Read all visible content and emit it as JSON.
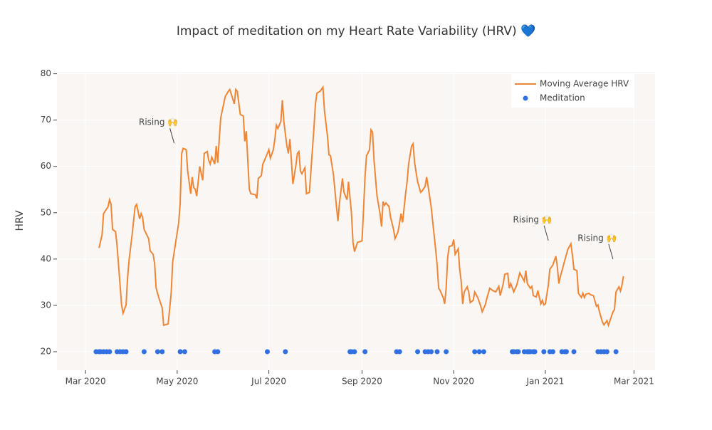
{
  "chart_data": {
    "type": "line",
    "title": "Impact of meditation on my Heart Rate Variability (HRV) 💙",
    "y_label": "HRV",
    "xlim": [
      "2020-02-11",
      "2021-03-15"
    ],
    "xticks": [
      {
        "value": "2020-03-01",
        "label": "Mar 2020"
      },
      {
        "value": "2020-05-01",
        "label": "May 2020"
      },
      {
        "value": "2020-07-01",
        "label": "Jul 2020"
      },
      {
        "value": "2020-09-01",
        "label": "Sep 2020"
      },
      {
        "value": "2020-11-01",
        "label": "Nov 2020"
      },
      {
        "value": "2021-01-01",
        "label": "Jan 2021"
      },
      {
        "value": "2021-03-01",
        "label": "Mar 2021"
      }
    ],
    "ylim": [
      16,
      80.4
    ],
    "yticks": [
      20,
      30,
      40,
      50,
      60,
      70,
      80
    ],
    "grid": true,
    "legend": "top-right",
    "annotations": [
      {
        "text": "Rising 🙌",
        "x": "2020-04-29",
        "y": 65
      },
      {
        "text": "Rising 🙌",
        "x": "2021-01-03",
        "y": 44
      },
      {
        "text": "Rising 🙌",
        "x": "2021-02-15",
        "y": 40
      }
    ],
    "series": [
      {
        "name": "Moving Average HRV",
        "color": "#ef8636",
        "mode": "lines",
        "x": [
          "2020-03-10",
          "2020-03-12",
          "2020-03-13",
          "2020-03-15",
          "2020-03-16",
          "2020-03-17",
          "2020-03-18",
          "2020-03-19",
          "2020-03-21",
          "2020-03-22",
          "2020-03-25",
          "2020-03-26",
          "2020-03-28",
          "2020-03-29",
          "2020-03-30",
          "2020-04-01",
          "2020-04-03",
          "2020-04-04",
          "2020-04-06",
          "2020-04-07",
          "2020-04-08",
          "2020-04-09",
          "2020-04-12",
          "2020-04-13",
          "2020-04-15",
          "2020-04-16",
          "2020-04-17",
          "2020-04-19",
          "2020-04-21",
          "2020-04-22",
          "2020-04-25",
          "2020-04-27",
          "2020-04-28",
          "2020-04-30",
          "2020-05-02",
          "2020-05-03",
          "2020-05-04",
          "2020-05-05",
          "2020-05-07",
          "2020-05-08",
          "2020-05-10",
          "2020-05-11",
          "2020-05-12",
          "2020-05-13",
          "2020-05-14",
          "2020-05-16",
          "2020-05-18",
          "2020-05-19",
          "2020-05-21",
          "2020-05-22",
          "2020-05-23",
          "2020-05-24",
          "2020-05-26",
          "2020-05-27",
          "2020-05-28",
          "2020-05-29",
          "2020-05-30",
          "2020-06-02",
          "2020-06-04",
          "2020-06-05",
          "2020-06-06",
          "2020-06-08",
          "2020-06-09",
          "2020-06-10",
          "2020-06-12",
          "2020-06-14",
          "2020-06-15",
          "2020-06-16",
          "2020-06-17",
          "2020-06-18",
          "2020-06-19",
          "2020-06-22",
          "2020-06-23",
          "2020-06-24",
          "2020-06-26",
          "2020-06-27",
          "2020-06-29",
          "2020-07-01",
          "2020-07-02",
          "2020-07-04",
          "2020-07-05",
          "2020-07-06",
          "2020-07-07",
          "2020-07-09",
          "2020-07-10",
          "2020-07-11",
          "2020-07-13",
          "2020-07-14",
          "2020-07-15",
          "2020-07-16",
          "2020-07-17",
          "2020-07-19",
          "2020-07-20",
          "2020-07-21",
          "2020-07-22",
          "2020-07-23",
          "2020-07-25",
          "2020-07-26",
          "2020-07-28",
          "2020-07-29",
          "2020-07-31",
          "2020-08-01",
          "2020-08-02",
          "2020-08-04",
          "2020-08-05",
          "2020-08-06",
          "2020-08-07",
          "2020-08-09",
          "2020-08-10",
          "2020-08-11",
          "2020-08-13",
          "2020-08-15",
          "2020-08-16",
          "2020-08-17",
          "2020-08-19",
          "2020-08-20",
          "2020-08-22",
          "2020-08-23",
          "2020-08-25",
          "2020-08-26",
          "2020-08-27",
          "2020-08-29",
          "2020-09-01",
          "2020-09-02",
          "2020-09-03",
          "2020-09-04",
          "2020-09-06",
          "2020-09-07",
          "2020-09-08",
          "2020-09-09",
          "2020-09-11",
          "2020-09-13",
          "2020-09-14",
          "2020-09-15",
          "2020-09-16",
          "2020-09-17",
          "2020-09-19",
          "2020-09-20",
          "2020-09-22",
          "2020-09-23",
          "2020-09-25",
          "2020-09-27",
          "2020-09-28",
          "2020-09-30",
          "2020-10-01",
          "2020-10-02",
          "2020-10-04",
          "2020-10-05",
          "2020-10-06",
          "2020-10-08",
          "2020-10-10",
          "2020-10-11",
          "2020-10-13",
          "2020-10-14",
          "2020-10-15",
          "2020-10-17",
          "2020-10-18",
          "2020-10-20",
          "2020-10-21",
          "2020-10-22",
          "2020-10-23",
          "2020-10-25",
          "2020-10-26",
          "2020-10-27",
          "2020-10-28",
          "2020-10-29",
          "2020-10-31",
          "2020-11-01",
          "2020-11-02",
          "2020-11-04",
          "2020-11-05",
          "2020-11-06",
          "2020-11-07",
          "2020-11-08",
          "2020-11-10",
          "2020-11-11",
          "2020-11-12",
          "2020-11-14",
          "2020-11-15",
          "2020-11-17",
          "2020-11-19",
          "2020-11-20",
          "2020-11-22",
          "2020-11-23",
          "2020-11-25",
          "2020-11-27",
          "2020-11-29",
          "2020-12-01",
          "2020-12-02",
          "2020-12-04",
          "2020-12-05",
          "2020-12-07",
          "2020-12-08",
          "2020-12-09",
          "2020-12-11",
          "2020-12-12",
          "2020-12-13",
          "2020-12-15",
          "2020-12-16",
          "2020-12-18",
          "2020-12-19",
          "2020-12-20",
          "2020-12-22",
          "2020-12-23",
          "2020-12-24",
          "2020-12-26",
          "2020-12-27",
          "2020-12-29",
          "2020-12-30",
          "2020-12-31",
          "2021-01-01",
          "2021-01-03",
          "2021-01-04",
          "2021-01-06",
          "2021-01-08",
          "2021-01-09",
          "2021-01-10",
          "2021-01-11",
          "2021-01-13",
          "2021-01-14",
          "2021-01-16",
          "2021-01-18",
          "2021-01-19",
          "2021-01-20",
          "2021-01-22",
          "2021-01-23",
          "2021-01-25",
          "2021-01-26",
          "2021-01-27",
          "2021-01-28",
          "2021-01-30",
          "2021-01-31",
          "2021-02-02",
          "2021-02-04",
          "2021-02-05",
          "2021-02-06",
          "2021-02-08",
          "2021-02-09",
          "2021-02-11",
          "2021-02-12",
          "2021-02-13",
          "2021-02-15",
          "2021-02-16",
          "2021-02-17",
          "2021-02-19",
          "2021-02-20",
          "2021-02-21",
          "2021-02-22"
        ],
        "values": [
          42.4,
          45.2,
          49.8,
          50.8,
          51.3,
          52.8,
          51.8,
          46.4,
          45.9,
          42.9,
          30.1,
          28.3,
          30.1,
          36,
          39.8,
          45.2,
          51.3,
          51.8,
          48.7,
          49.8,
          49,
          46.4,
          44.4,
          41.8,
          41,
          39,
          33.7,
          31.4,
          29.5,
          25.7,
          26,
          32.6,
          39.3,
          43.6,
          47.8,
          52.1,
          62.8,
          63.9,
          63.6,
          59,
          54.1,
          57.7,
          55.4,
          55.1,
          53.6,
          60,
          57,
          62.8,
          63.2,
          61.3,
          60.5,
          62,
          60.5,
          64.4,
          60.8,
          65.9,
          70.5,
          75.1,
          76.2,
          76.6,
          75.6,
          73.5,
          76.6,
          76.2,
          71.2,
          70.9,
          65.4,
          67.6,
          61.3,
          55.1,
          54.1,
          53.9,
          53.1,
          57.4,
          58,
          60.5,
          62,
          63.6,
          61.8,
          63.6,
          65.9,
          68.9,
          68.2,
          69.7,
          74.3,
          69.7,
          64.4,
          62.8,
          65.9,
          61.3,
          56.2,
          60.2,
          62.8,
          63.2,
          59,
          58.4,
          59.7,
          54.1,
          54.4,
          59,
          68.2,
          73.5,
          75.8,
          76.2,
          76.6,
          77.1,
          72.1,
          66.6,
          62.5,
          62.3,
          58.2,
          51.3,
          48.2,
          52.1,
          57.4,
          54.4,
          52.8,
          56.7,
          49.8,
          43.6,
          41.6,
          43.6,
          43.9,
          50.5,
          57.7,
          62.3,
          63.6,
          67.9,
          67.4,
          61.3,
          53.6,
          49.8,
          47,
          52.4,
          51.6,
          52.1,
          51.3,
          49,
          46.4,
          44.4,
          45.9,
          49.8,
          47.9,
          54.1,
          56.7,
          60.5,
          64.4,
          64.9,
          60.8,
          56.7,
          54.4,
          54.7,
          55.7,
          57.7,
          55.7,
          51.3,
          48.2,
          42.1,
          38.7,
          33.7,
          33.2,
          31.7,
          30.3,
          33.7,
          40.3,
          42.7,
          42.9,
          44.2,
          41,
          42.2,
          37.8,
          35.2,
          30.3,
          32.9,
          34,
          32.9,
          30.6,
          31.1,
          32.9,
          31.7,
          29.8,
          28.6,
          30.1,
          31.4,
          33.7,
          33.2,
          32.9,
          34.1,
          32.1,
          34.7,
          36.7,
          36.9,
          33.7,
          34.7,
          32.9,
          33.7,
          34.4,
          37,
          36.4,
          35.2,
          37.5,
          34.7,
          33.7,
          34.1,
          32.1,
          31.8,
          33.2,
          30.3,
          31.1,
          30.1,
          30.3,
          34.4,
          37.8,
          38.7,
          40.6,
          38.3,
          34.7,
          36.2,
          38.6,
          39.8,
          42.1,
          43.3,
          40.9,
          37.8,
          37.5,
          32.6,
          31.7,
          32.6,
          31.7,
          32.4,
          32.6,
          32.3,
          32.1,
          29.8,
          30.1,
          28.6,
          26.4,
          25.8,
          26.7,
          25.7,
          26.7,
          28.6,
          29.1,
          32.9,
          34,
          33.1,
          34.4,
          36.3
        ]
      },
      {
        "name": "Meditation",
        "color": "#3070e0",
        "mode": "markers",
        "x": [
          "2020-03-08",
          "2020-03-10",
          "2020-03-11",
          "2020-03-13",
          "2020-03-15",
          "2020-03-17",
          "2020-03-22",
          "2020-03-24",
          "2020-03-26",
          "2020-03-28",
          "2020-04-09",
          "2020-04-18",
          "2020-04-21",
          "2020-05-03",
          "2020-05-06",
          "2020-05-26",
          "2020-05-28",
          "2020-06-30",
          "2020-07-12",
          "2020-08-24",
          "2020-08-25",
          "2020-08-27",
          "2020-09-03",
          "2020-09-24",
          "2020-09-26",
          "2020-10-08",
          "2020-10-13",
          "2020-10-15",
          "2020-10-17",
          "2020-10-21",
          "2020-10-27",
          "2020-11-15",
          "2020-11-18",
          "2020-11-21",
          "2020-12-10",
          "2020-12-11",
          "2020-12-13",
          "2020-12-14",
          "2020-12-18",
          "2020-12-20",
          "2020-12-21",
          "2020-12-22",
          "2020-12-24",
          "2020-12-25",
          "2020-12-31",
          "2021-01-04",
          "2021-01-06",
          "2021-01-12",
          "2021-01-14",
          "2021-01-15",
          "2021-01-20",
          "2021-02-05",
          "2021-02-07",
          "2021-02-09",
          "2021-02-11",
          "2021-02-17"
        ],
        "values": [
          20,
          20,
          20,
          20,
          20,
          20,
          20,
          20,
          20,
          20,
          20,
          20,
          20,
          20,
          20,
          20,
          20,
          20,
          20,
          20,
          20,
          20,
          20,
          20,
          20,
          20,
          20,
          20,
          20,
          20,
          20,
          20,
          20,
          20,
          20,
          20,
          20,
          20,
          20,
          20,
          20,
          20,
          20,
          20,
          20,
          20,
          20,
          20,
          20,
          20,
          20,
          20,
          20,
          20,
          20,
          20
        ]
      }
    ]
  }
}
